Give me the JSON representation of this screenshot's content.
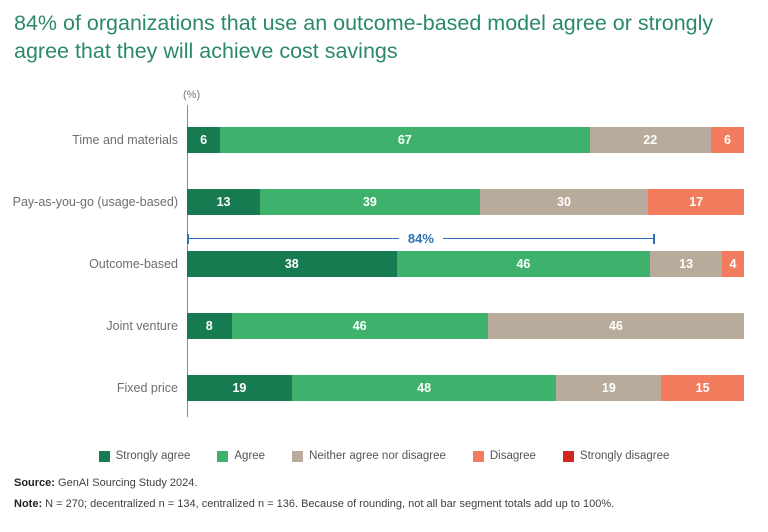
{
  "title": "84% of organizations that use an outcome-based model agree or strongly agree that they will achieve cost savings",
  "chart_data": {
    "type": "bar",
    "orientation": "horizontal",
    "stacked": true,
    "unit_label": "(%)",
    "xlim": [
      0,
      100
    ],
    "grid": false,
    "legend_position": "bottom",
    "categories": [
      "Time and materials",
      "Pay-as-you-go (usage-based)",
      "Outcome-based",
      "Joint venture",
      "Fixed price"
    ],
    "series": [
      {
        "name": "Strongly agree",
        "color": "#177b52",
        "values": [
          6,
          13,
          38,
          8,
          19
        ]
      },
      {
        "name": "Agree",
        "color": "#3eb26c",
        "values": [
          67,
          39,
          46,
          46,
          48
        ]
      },
      {
        "name": "Neither agree nor disagree",
        "color": "#b9ab9b",
        "values": [
          22,
          30,
          13,
          46,
          19
        ]
      },
      {
        "name": "Disagree",
        "color": "#f37b5e",
        "values": [
          6,
          17,
          4,
          0,
          15
        ]
      },
      {
        "name": "Strongly disagree",
        "color": "#d2251d",
        "values": [
          0,
          0,
          0,
          0,
          0
        ]
      }
    ],
    "annotation": {
      "label": "84%",
      "row": "Outcome-based",
      "span_percent": 84,
      "color": "#2d72b5"
    }
  },
  "footer": {
    "source_label": "Source:",
    "source_text": " GenAI Sourcing Study 2024.",
    "note_label": "Note:",
    "note_text": " N = 270; decentralized n = 134, centralized n = 136. Because of rounding, not all bar segment totals add up to 100%."
  }
}
